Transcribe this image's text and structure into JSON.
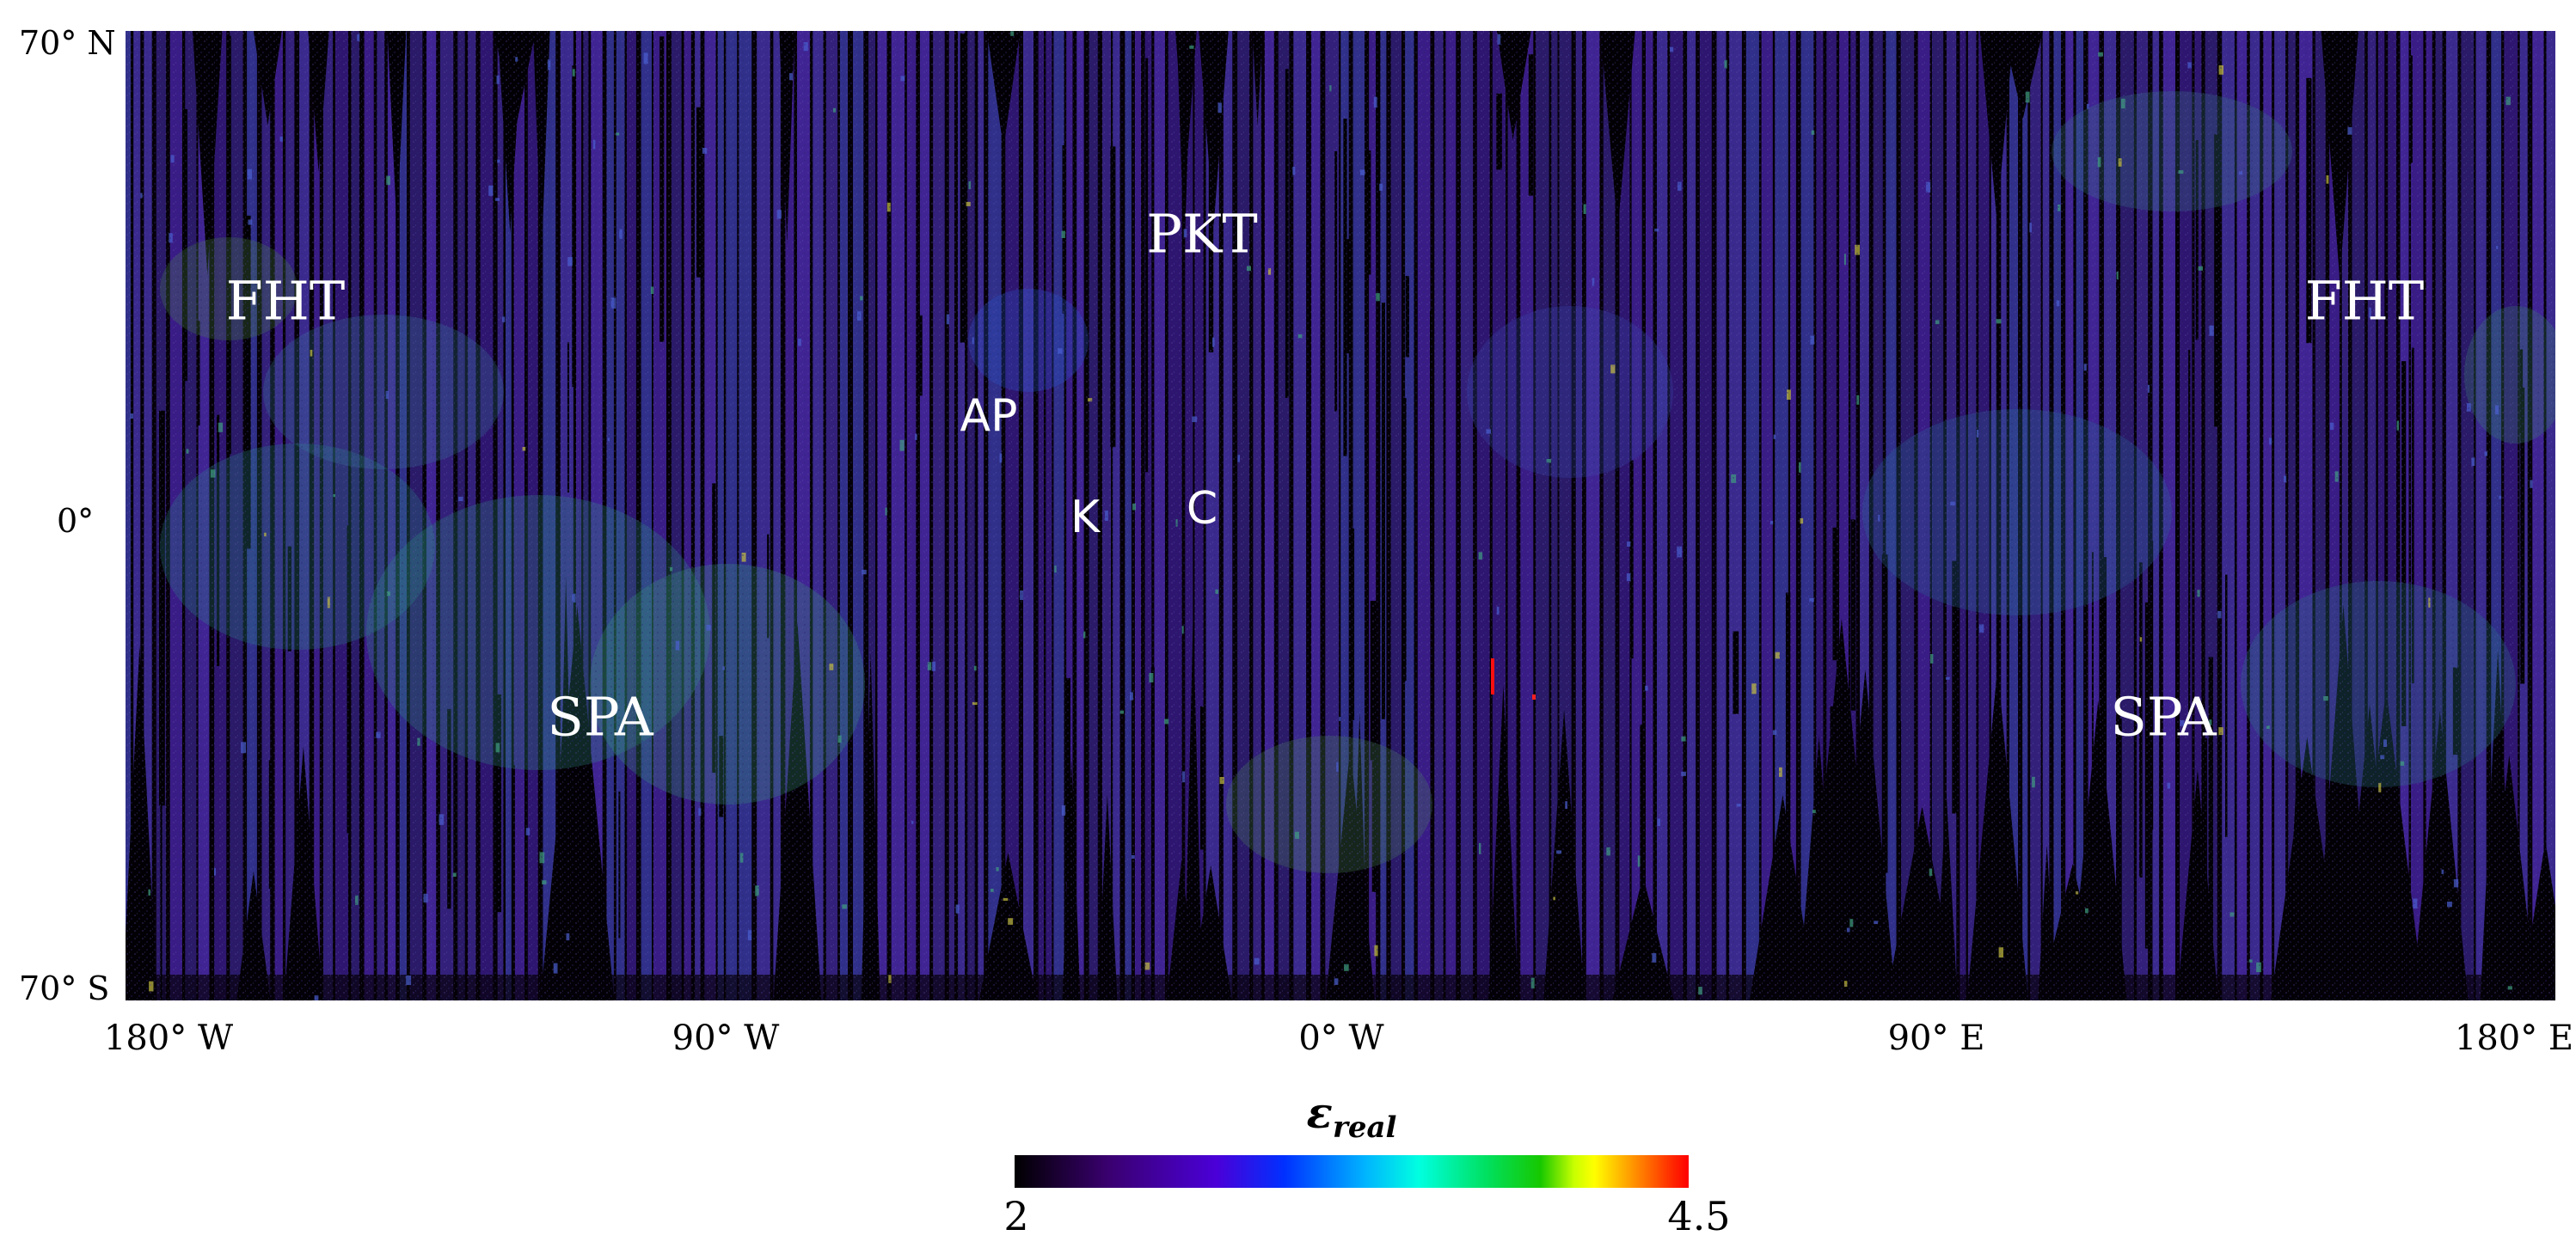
{
  "map": {
    "latitude_labels": [
      "70° N",
      "0°",
      "70° S"
    ],
    "longitude_labels": [
      "180° W",
      "90° W",
      "0° W",
      "90° E",
      "180° E"
    ],
    "regions": [
      {
        "label": "FHT",
        "style": "serif"
      },
      {
        "label": "FHT",
        "style": "serif"
      },
      {
        "label": "PKT",
        "style": "serif"
      },
      {
        "label": "AP",
        "style": "sans"
      },
      {
        "label": "K",
        "style": "sans"
      },
      {
        "label": "C",
        "style": "sans"
      },
      {
        "label": "SPA",
        "style": "serif"
      },
      {
        "label": "SPA",
        "style": "serif"
      }
    ],
    "colors": {
      "background_black": "#050008",
      "dominant_purple": "#3b1a80",
      "blue": "#2a3ad0",
      "teal": "#2a9a9a",
      "green": "#6aa040",
      "yellow": "#d0c040",
      "red": "#ff0000"
    }
  },
  "colorbar": {
    "title_main": "ε",
    "title_sub": "real",
    "min_label": "2",
    "max_label": "4.5",
    "min_value": 2,
    "max_value": 4.5
  }
}
